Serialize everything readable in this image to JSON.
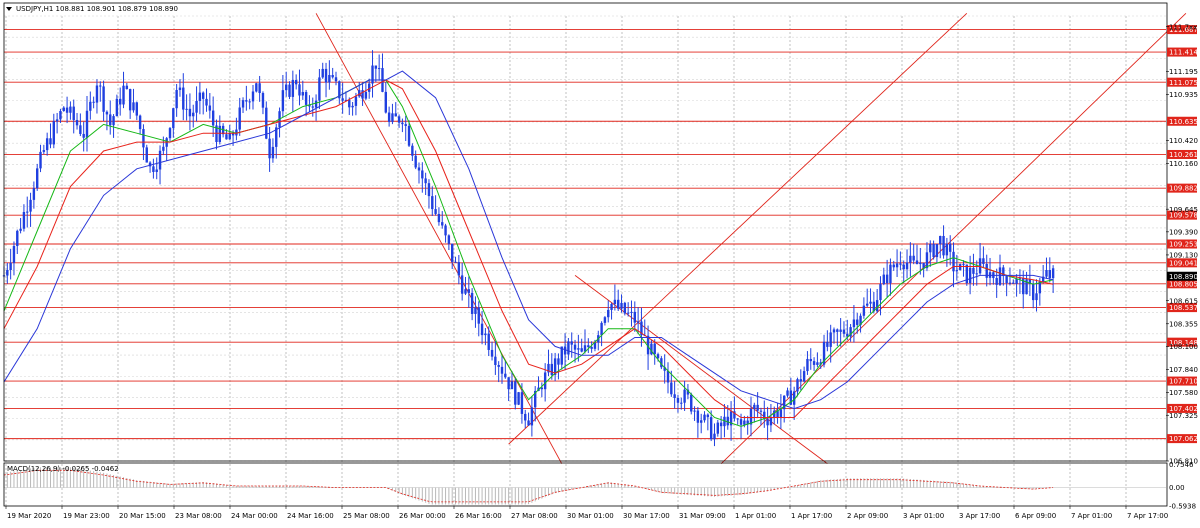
{
  "header": {
    "title": "USDJPY,H1",
    "quote": "108.881 108.901 108.879 108.890"
  },
  "macd": {
    "label": "MACD(12,26,9)",
    "values": "-0.0265 -0.0462"
  },
  "colors": {
    "background": "#ffffff",
    "candles": "#1f3fe0",
    "grid": "#c0c0c0",
    "levels": "#e0251b",
    "ma_fast": "#16b816",
    "ma_mid": "#e8231b",
    "ma_slow": "#2a37d8",
    "price_tag": "#e0251b",
    "current_tag": "#000000"
  },
  "chart_data": {
    "type": "candlestick",
    "symbol": "USDJPY",
    "timeframe": "H1",
    "ylim": [
      106.81,
      111.82
    ],
    "x_axis_labels": [
      "19 Mar 2020",
      "19 Mar 23:00",
      "20 Mar 15:00",
      "23 Mar 08:00",
      "24 Mar 00:00",
      "24 Mar 16:00",
      "25 Mar 08:00",
      "26 Mar 00:00",
      "26 Mar 16:00",
      "27 Mar 08:00",
      "30 Mar 01:00",
      "30 Mar 17:00",
      "31 Mar 09:00",
      "1 Apr 01:00",
      "1 Apr 17:00",
      "2 Apr 09:00",
      "3 Apr 01:00",
      "3 Apr 17:00",
      "6 Apr 09:00",
      "7 Apr 01:00",
      "7 Apr 17:00"
    ],
    "price_scale_labels": [
      "111.7xx",
      "111.195",
      "110.935",
      "110.420",
      "110.160",
      "109.645",
      "109.390",
      "109.130",
      "108.615",
      "108.355",
      "108.100",
      "107.840",
      "107.580",
      "107.325",
      "106.810"
    ],
    "horizontal_levels": [
      "111.667",
      "111.414",
      "111.075",
      "110.635",
      "110.261",
      "109.882",
      "109.578",
      "109.253",
      "109.041",
      "108.805",
      "108.537",
      "108.148",
      "107.710",
      "107.402",
      "107.062"
    ],
    "current_price": "108.890",
    "close_path": [
      [
        0,
        108.9
      ],
      [
        6,
        109.6
      ],
      [
        12,
        110.3
      ],
      [
        18,
        110.8
      ],
      [
        24,
        110.5
      ],
      [
        28,
        111.1
      ],
      [
        32,
        110.6
      ],
      [
        36,
        111.0
      ],
      [
        40,
        110.7
      ],
      [
        44,
        110.1
      ],
      [
        48,
        110.3
      ],
      [
        52,
        111.0
      ],
      [
        56,
        110.7
      ],
      [
        60,
        110.9
      ],
      [
        64,
        110.5
      ],
      [
        68,
        110.4
      ],
      [
        72,
        110.8
      ],
      [
        76,
        111.1
      ],
      [
        80,
        110.3
      ],
      [
        84,
        110.9
      ],
      [
        88,
        111.1
      ],
      [
        92,
        110.7
      ],
      [
        96,
        111.2
      ],
      [
        100,
        111.0
      ],
      [
        104,
        110.8
      ],
      [
        108,
        111.0
      ],
      [
        112,
        111.3
      ],
      [
        116,
        110.6
      ],
      [
        120,
        110.7
      ],
      [
        124,
        110.2
      ],
      [
        128,
        109.8
      ],
      [
        132,
        109.4
      ],
      [
        136,
        109.0
      ],
      [
        140,
        108.6
      ],
      [
        144,
        108.3
      ],
      [
        148,
        108.0
      ],
      [
        152,
        107.7
      ],
      [
        156,
        107.4
      ],
      [
        158,
        107.3
      ],
      [
        162,
        107.7
      ],
      [
        166,
        107.9
      ],
      [
        170,
        108.1
      ],
      [
        174,
        108.0
      ],
      [
        178,
        108.2
      ],
      [
        182,
        108.6
      ],
      [
        186,
        108.5
      ],
      [
        190,
        108.4
      ],
      [
        194,
        108.1
      ],
      [
        198,
        107.8
      ],
      [
        202,
        107.6
      ],
      [
        206,
        107.5
      ],
      [
        210,
        107.3
      ],
      [
        214,
        107.1
      ],
      [
        218,
        107.3
      ],
      [
        222,
        107.2
      ],
      [
        226,
        107.4
      ],
      [
        230,
        107.3
      ],
      [
        234,
        107.4
      ],
      [
        238,
        107.6
      ],
      [
        242,
        107.9
      ],
      [
        246,
        108.0
      ],
      [
        250,
        108.2
      ],
      [
        254,
        108.3
      ],
      [
        258,
        108.5
      ],
      [
        262,
        108.6
      ],
      [
        266,
        108.9
      ],
      [
        270,
        109.1
      ],
      [
        274,
        109.0
      ],
      [
        278,
        109.1
      ],
      [
        282,
        109.3
      ],
      [
        286,
        109.0
      ],
      [
        290,
        108.9
      ],
      [
        294,
        109.0
      ],
      [
        298,
        108.9
      ],
      [
        302,
        108.9
      ],
      [
        306,
        108.8
      ],
      [
        310,
        108.7
      ],
      [
        314,
        108.9
      ],
      [
        316,
        108.89
      ]
    ],
    "ma_fast": [
      [
        0,
        108.5
      ],
      [
        10,
        109.4
      ],
      [
        20,
        110.3
      ],
      [
        30,
        110.6
      ],
      [
        40,
        110.5
      ],
      [
        50,
        110.4
      ],
      [
        60,
        110.6
      ],
      [
        70,
        110.5
      ],
      [
        80,
        110.6
      ],
      [
        90,
        110.8
      ],
      [
        100,
        110.9
      ],
      [
        110,
        111.1
      ],
      [
        115,
        111.1
      ],
      [
        120,
        110.8
      ],
      [
        130,
        109.9
      ],
      [
        140,
        108.9
      ],
      [
        150,
        108.0
      ],
      [
        158,
        107.5
      ],
      [
        166,
        107.8
      ],
      [
        174,
        108.0
      ],
      [
        182,
        108.3
      ],
      [
        190,
        108.3
      ],
      [
        198,
        107.9
      ],
      [
        206,
        107.6
      ],
      [
        214,
        107.3
      ],
      [
        222,
        107.2
      ],
      [
        230,
        107.3
      ],
      [
        238,
        107.5
      ],
      [
        246,
        107.9
      ],
      [
        254,
        108.2
      ],
      [
        262,
        108.5
      ],
      [
        270,
        108.8
      ],
      [
        278,
        109.0
      ],
      [
        286,
        109.1
      ],
      [
        294,
        109.0
      ],
      [
        302,
        108.9
      ],
      [
        310,
        108.8
      ],
      [
        316,
        108.85
      ]
    ],
    "ma_mid": [
      [
        0,
        108.3
      ],
      [
        10,
        109.0
      ],
      [
        20,
        109.9
      ],
      [
        30,
        110.3
      ],
      [
        40,
        110.4
      ],
      [
        50,
        110.4
      ],
      [
        60,
        110.5
      ],
      [
        70,
        110.5
      ],
      [
        80,
        110.6
      ],
      [
        90,
        110.7
      ],
      [
        100,
        110.8
      ],
      [
        110,
        111.0
      ],
      [
        115,
        111.1
      ],
      [
        120,
        111.0
      ],
      [
        130,
        110.3
      ],
      [
        140,
        109.4
      ],
      [
        150,
        108.5
      ],
      [
        158,
        107.9
      ],
      [
        166,
        107.8
      ],
      [
        174,
        107.9
      ],
      [
        182,
        108.1
      ],
      [
        190,
        108.3
      ],
      [
        198,
        108.1
      ],
      [
        206,
        107.8
      ],
      [
        214,
        107.5
      ],
      [
        222,
        107.3
      ],
      [
        230,
        107.3
      ],
      [
        238,
        107.3
      ],
      [
        246,
        107.6
      ],
      [
        254,
        107.9
      ],
      [
        262,
        108.2
      ],
      [
        270,
        108.5
      ],
      [
        278,
        108.8
      ],
      [
        286,
        109.0
      ],
      [
        294,
        109.0
      ],
      [
        302,
        108.9
      ],
      [
        310,
        108.85
      ],
      [
        316,
        108.8
      ]
    ],
    "ma_slow": [
      [
        0,
        107.7
      ],
      [
        10,
        108.3
      ],
      [
        20,
        109.2
      ],
      [
        30,
        109.8
      ],
      [
        40,
        110.1
      ],
      [
        50,
        110.2
      ],
      [
        60,
        110.3
      ],
      [
        70,
        110.4
      ],
      [
        80,
        110.5
      ],
      [
        90,
        110.7
      ],
      [
        100,
        110.9
      ],
      [
        110,
        111.1
      ],
      [
        115,
        111.1
      ],
      [
        120,
        111.2
      ],
      [
        130,
        110.9
      ],
      [
        140,
        110.1
      ],
      [
        150,
        109.1
      ],
      [
        158,
        108.4
      ],
      [
        166,
        108.1
      ],
      [
        174,
        108.0
      ],
      [
        182,
        108.0
      ],
      [
        190,
        108.2
      ],
      [
        198,
        108.2
      ],
      [
        206,
        108.0
      ],
      [
        214,
        107.8
      ],
      [
        222,
        107.6
      ],
      [
        230,
        107.5
      ],
      [
        238,
        107.4
      ],
      [
        246,
        107.5
      ],
      [
        254,
        107.7
      ],
      [
        262,
        108.0
      ],
      [
        270,
        108.3
      ],
      [
        278,
        108.6
      ],
      [
        286,
        108.8
      ],
      [
        294,
        108.9
      ],
      [
        302,
        108.9
      ],
      [
        310,
        108.9
      ],
      [
        316,
        108.85
      ]
    ],
    "trend_lines": [
      [
        [
          94,
          111.85
        ],
        [
          168,
          106.78
        ]
      ],
      [
        [
          152,
          107.0
        ],
        [
          290,
          111.85
        ]
      ],
      [
        [
          216,
          106.78
        ],
        [
          356,
          111.85
        ]
      ],
      [
        [
          172,
          108.9
        ],
        [
          248,
          106.78
        ]
      ]
    ],
    "subwindow": {
      "type": "macd",
      "name": "MACD(12,26,9)",
      "main": -0.0265,
      "signal": -0.0462,
      "scale_labels": [
        "0.7546",
        "0.00",
        "-0.5938"
      ],
      "ylim": [
        -0.6,
        0.8
      ]
    }
  }
}
